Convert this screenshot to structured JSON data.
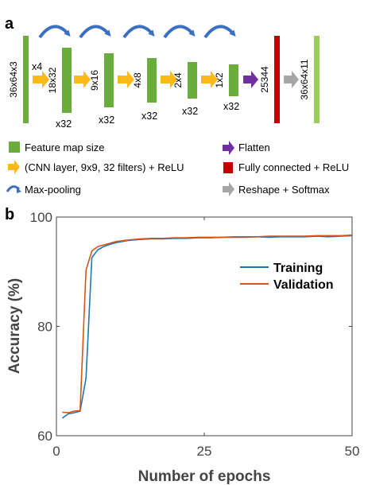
{
  "panel_a": {
    "label": "a",
    "input_size": "36x64x3",
    "x4_label": "x4",
    "output_size": "36x64x11",
    "fc_size": "25344",
    "maps": [
      {
        "size": "18x32",
        "count": "x32"
      },
      {
        "size": "9x16",
        "count": "x32"
      },
      {
        "size": "4x8",
        "count": "x32"
      },
      {
        "size": "2x4",
        "count": "x32"
      },
      {
        "size": "1x2",
        "count": "x32"
      }
    ],
    "legend": {
      "feature_map": "Feature map size",
      "cnn_layer": "(CNN layer,  9x9, 32 filters) + ReLU",
      "max_pooling": "Max-pooling",
      "flatten": "Flatten",
      "fully_connected": "Fully connected + ReLU",
      "reshape": "Reshape + Softmax"
    },
    "colors": {
      "feature_map": "#6aad3d",
      "output_map": "#9acd5a",
      "cnn_arrow": "#fbb917",
      "pool_arrow": "#3b6fc2",
      "flatten_arrow": "#7030a0",
      "fully_connected": "#c00000",
      "reshape_arrow": "#a6a6a6"
    }
  },
  "panel_b": {
    "label": "b"
  },
  "chart_data": {
    "type": "line",
    "title": "",
    "xlabel": "Number of epochs",
    "ylabel": "Accuracy (%)",
    "xlim": [
      0,
      50
    ],
    "ylim": [
      60,
      100
    ],
    "xticks": [
      0,
      25,
      50
    ],
    "yticks": [
      60,
      80,
      100
    ],
    "grid": false,
    "legend_position": "right",
    "series": [
      {
        "name": "Training",
        "color": "#1f77b4",
        "x": [
          1,
          2,
          3,
          4,
          5,
          6,
          7,
          8,
          9,
          10,
          12,
          14,
          16,
          18,
          20,
          22,
          24,
          26,
          28,
          30,
          32,
          34,
          36,
          38,
          40,
          42,
          44,
          46,
          48,
          50
        ],
        "y": [
          63.2,
          64.0,
          64.2,
          64.5,
          70.5,
          92.6,
          94.0,
          94.6,
          95.0,
          95.3,
          95.7,
          95.9,
          96.0,
          96.0,
          96.1,
          96.1,
          96.2,
          96.2,
          96.3,
          96.3,
          96.3,
          96.4,
          96.3,
          96.4,
          96.4,
          96.4,
          96.5,
          96.4,
          96.5,
          96.6
        ]
      },
      {
        "name": "Validation",
        "color": "#d95319",
        "x": [
          1,
          2,
          3,
          4,
          5,
          6,
          7,
          8,
          9,
          10,
          12,
          14,
          16,
          18,
          20,
          22,
          24,
          26,
          28,
          30,
          32,
          34,
          36,
          38,
          40,
          42,
          44,
          46,
          48,
          50
        ],
        "y": [
          64.3,
          64.2,
          64.5,
          64.6,
          90.3,
          93.8,
          94.6,
          94.9,
          95.2,
          95.5,
          95.8,
          96.0,
          96.1,
          96.1,
          96.2,
          96.2,
          96.3,
          96.3,
          96.3,
          96.4,
          96.4,
          96.4,
          96.5,
          96.5,
          96.5,
          96.5,
          96.6,
          96.6,
          96.6,
          96.7
        ]
      }
    ]
  }
}
